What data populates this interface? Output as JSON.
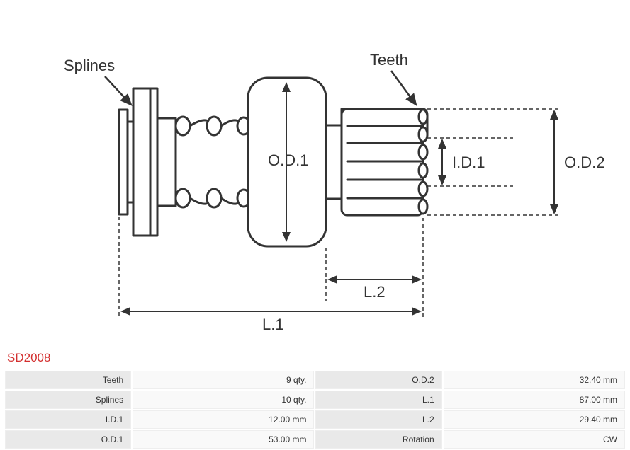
{
  "partNumber": "SD2008",
  "diagram": {
    "labels": {
      "splines": "Splines",
      "teeth": "Teeth",
      "od1": "O.D.1",
      "od2": "O.D.2",
      "id1": "I.D.1",
      "l1": "L.1",
      "l2": "L.2"
    },
    "stroke": "#333333",
    "strokeWidth": 3,
    "dimStrokeWidth": 2,
    "labelFontSize": 22,
    "labelColor": "#333333"
  },
  "specs": [
    {
      "label1": "Teeth",
      "value1": "9 qty.",
      "label2": "O.D.2",
      "value2": "32.40 mm"
    },
    {
      "label1": "Splines",
      "value1": "10 qty.",
      "label2": "L.1",
      "value2": "87.00 mm"
    },
    {
      "label1": "I.D.1",
      "value1": "12.00 mm",
      "label2": "L.2",
      "value2": "29.40 mm"
    },
    {
      "label1": "O.D.1",
      "value1": "53.00 mm",
      "label2": "Rotation",
      "value2": "CW"
    }
  ],
  "colors": {
    "partNumber": "#d32f2f",
    "tableLabelBg": "#e9e9e9",
    "tableValueBg": "#f9f9f9",
    "tableText": "#333333",
    "tableBorder": "#eeeeee"
  }
}
